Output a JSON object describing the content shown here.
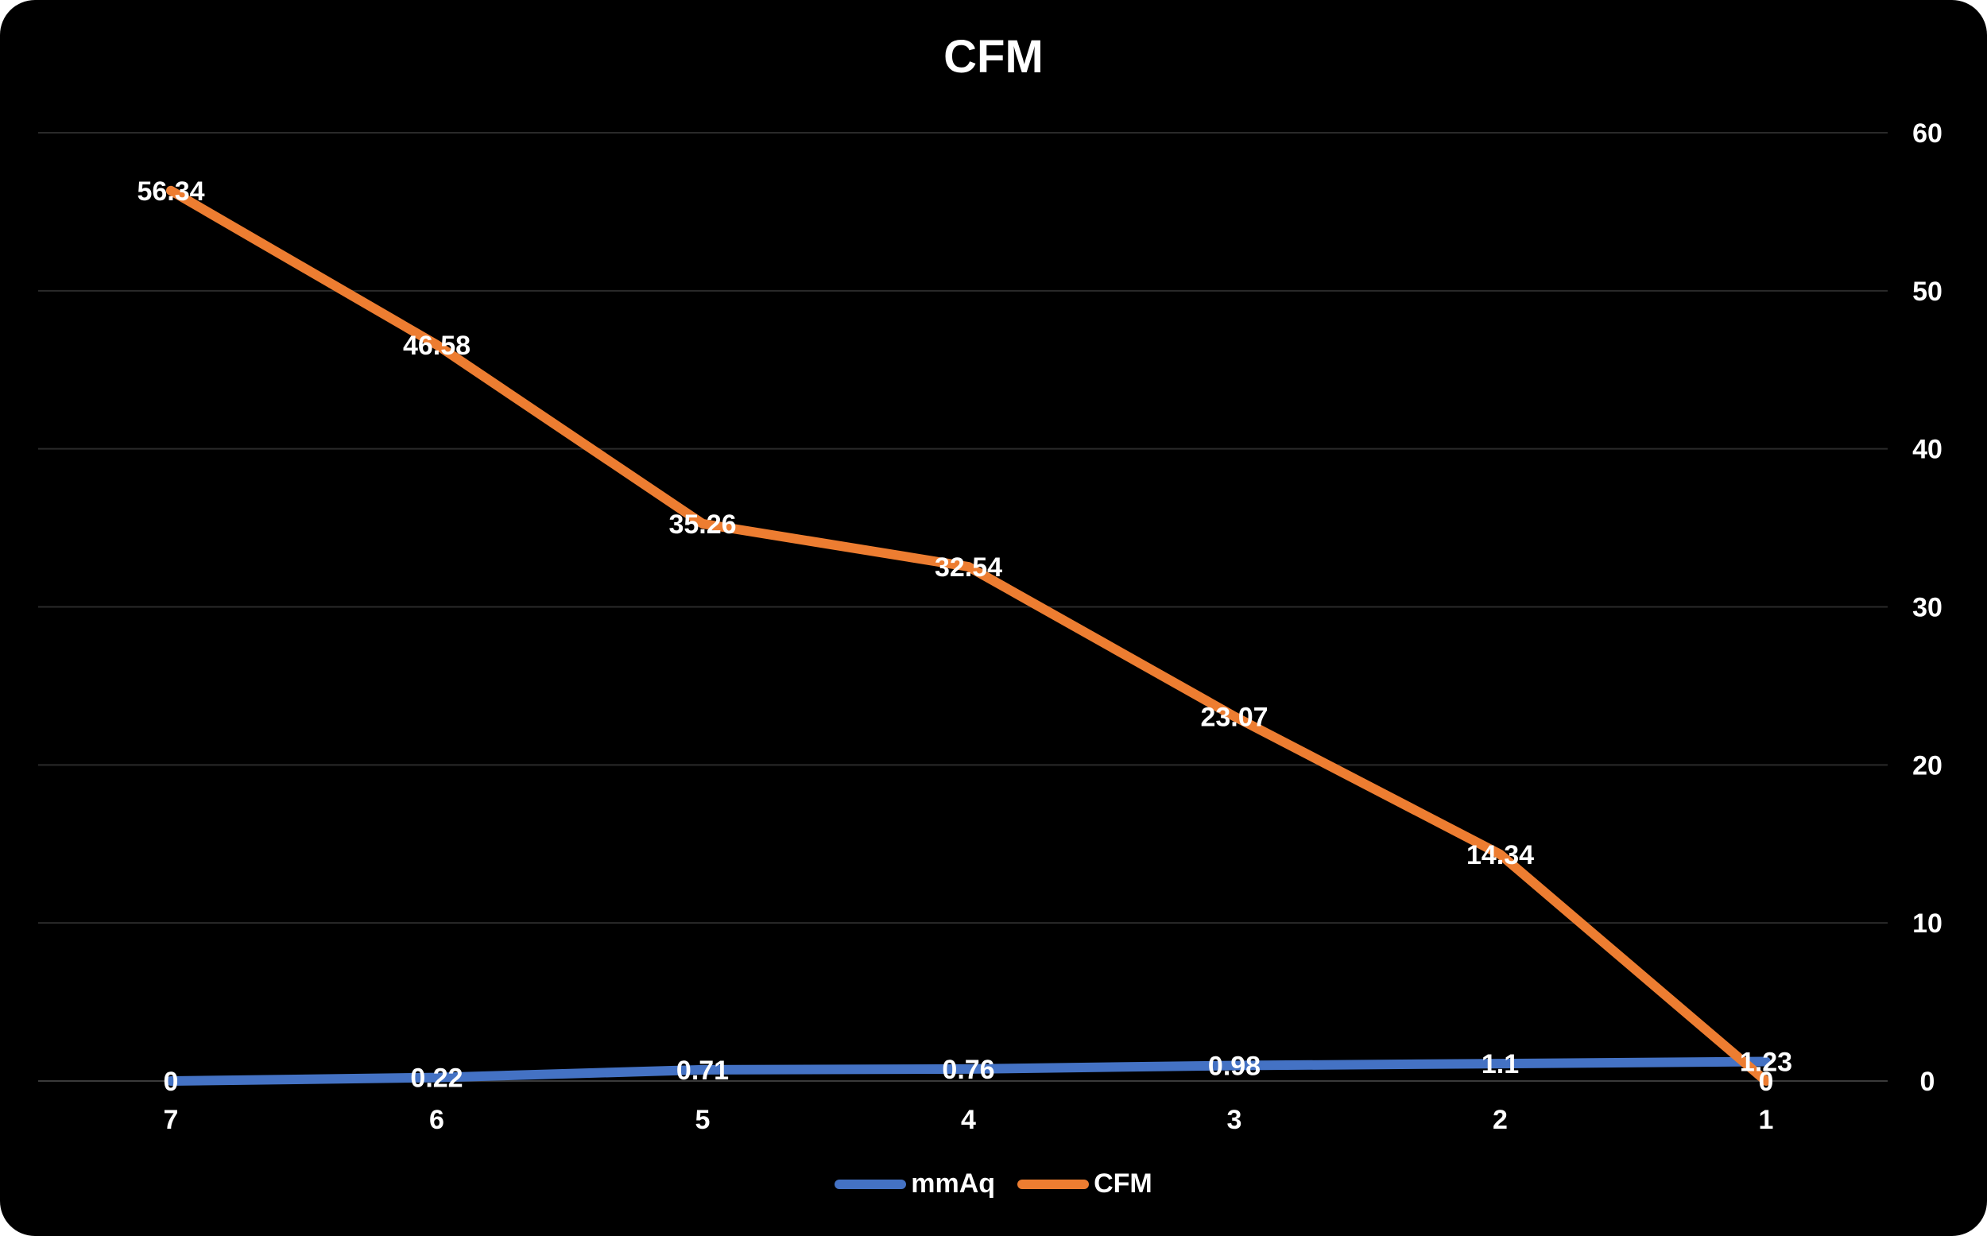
{
  "chart_data": {
    "type": "line",
    "title": "CFM",
    "categories": [
      "7",
      "6",
      "5",
      "4",
      "3",
      "2",
      "1"
    ],
    "xlabel": "",
    "ylabel": "",
    "ylim": [
      0,
      60
    ],
    "yticks": [
      "0",
      "10",
      "20",
      "30",
      "40",
      "50",
      "60"
    ],
    "grid": true,
    "legend_position": "bottom",
    "series": [
      {
        "name": "mmAq",
        "color": "#4472c4",
        "values": [
          0,
          0.22,
          0.71,
          0.76,
          0.98,
          1.1,
          1.23
        ],
        "labels": [
          "0",
          "0.22",
          "0.71",
          "0.76",
          "0.98",
          "1.1",
          "1.23"
        ]
      },
      {
        "name": "CFM",
        "color": "#ed7d31",
        "values": [
          56.34,
          46.58,
          35.26,
          32.54,
          23.07,
          14.34,
          0
        ],
        "labels": [
          "56.34",
          "46.58",
          "35.26",
          "32.54",
          "23.07",
          "14.34",
          "0"
        ]
      }
    ]
  }
}
